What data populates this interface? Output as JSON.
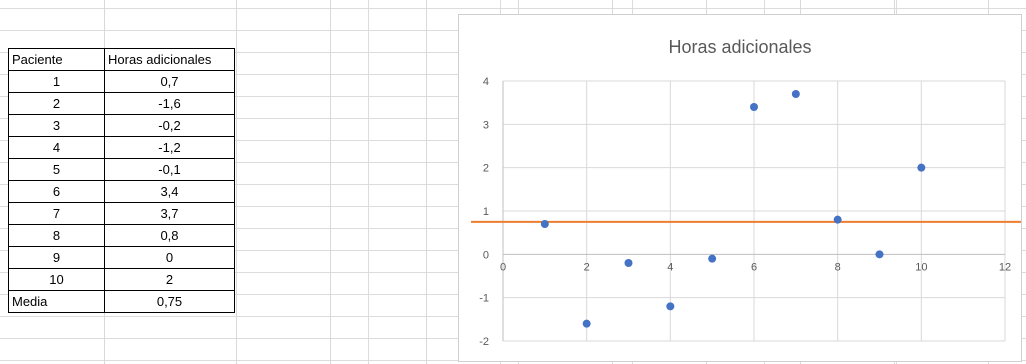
{
  "table": {
    "header": [
      "Paciente",
      "Horas adicionales"
    ],
    "rows": [
      [
        "1",
        "0,7"
      ],
      [
        "2",
        "-1,6"
      ],
      [
        "3",
        "-0,2"
      ],
      [
        "4",
        "-1,2"
      ],
      [
        "5",
        "-0,1"
      ],
      [
        "6",
        "3,4"
      ],
      [
        "7",
        "3,7"
      ],
      [
        "8",
        "0,8"
      ],
      [
        "9",
        "0"
      ],
      [
        "10",
        "2"
      ]
    ],
    "footer": [
      "Media",
      "0,75"
    ]
  },
  "chart_data": {
    "type": "scatter",
    "title": "Horas adicionales",
    "xlim": [
      0,
      12
    ],
    "ylim": [
      -2,
      4
    ],
    "xticks": [
      0,
      2,
      4,
      6,
      8,
      10,
      12
    ],
    "yticks": [
      -2,
      -1,
      0,
      1,
      2,
      3,
      4
    ],
    "points": [
      {
        "x": 1,
        "y": 0.7
      },
      {
        "x": 2,
        "y": -1.6
      },
      {
        "x": 3,
        "y": -0.2
      },
      {
        "x": 4,
        "y": -1.2
      },
      {
        "x": 5,
        "y": -0.1
      },
      {
        "x": 6,
        "y": 3.4
      },
      {
        "x": 7,
        "y": 3.7
      },
      {
        "x": 8,
        "y": 0.8
      },
      {
        "x": 9,
        "y": 0
      },
      {
        "x": 10,
        "y": 2
      }
    ],
    "mean_line": 0.75,
    "grid": true,
    "colors": {
      "points": "#4472c4",
      "mean_line": "#ed7d31"
    }
  }
}
